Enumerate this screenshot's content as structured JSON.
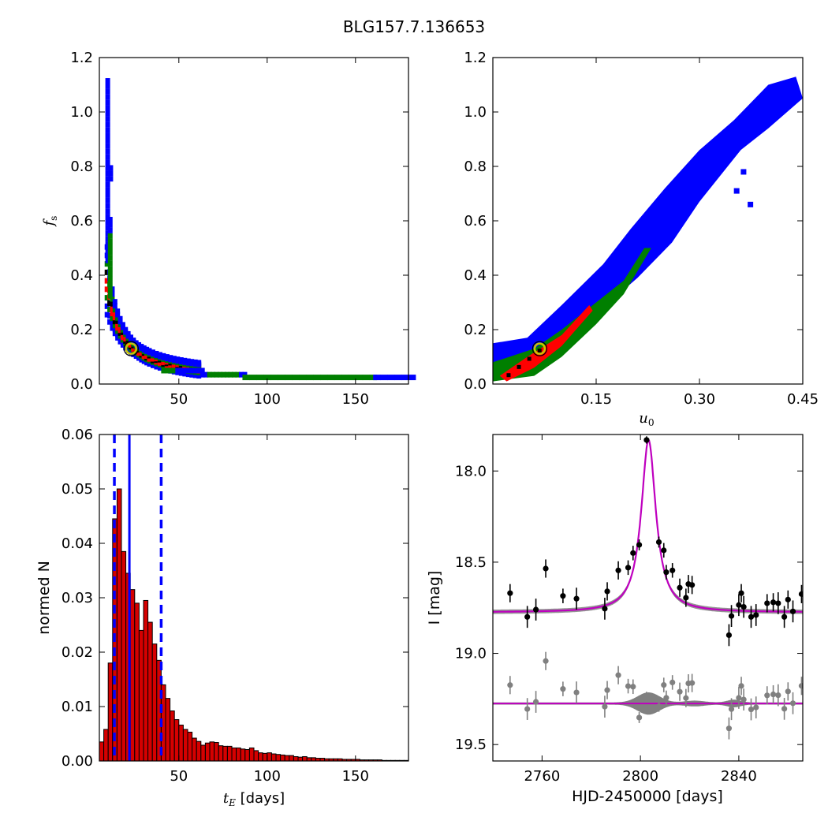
{
  "figure": {
    "title": "BLG157.7.136653"
  },
  "colors": {
    "blue": "#0000ff",
    "green": "#007f00",
    "red": "#ff0000",
    "black": "#000000",
    "bar_fill": "#d50000",
    "model_line": "#bf00bf",
    "model_band": "#808080",
    "marker_edge": "#c8c800",
    "residual_points": "#808080"
  },
  "chart_data": [
    {
      "id": "fs_vs_tE",
      "type": "heatmap",
      "title": "",
      "xlabel": "",
      "ylabel": "f_s",
      "xlim": [
        5,
        180
      ],
      "ylim": [
        0,
        1.2
      ],
      "xticks": [
        50,
        100,
        150
      ],
      "yticks": [
        0.0,
        0.2,
        0.4,
        0.6,
        0.8,
        1.0,
        1.2
      ],
      "ytick_labels": [
        "0.0",
        "0.2",
        "0.4",
        "0.6",
        "0.8",
        "1.0",
        "1.2"
      ],
      "levels": [
        "blue",
        "green",
        "red",
        "black"
      ],
      "best_fit": {
        "tE": 23,
        "fs": 0.13
      }
    },
    {
      "id": "fs_vs_u0",
      "type": "heatmap",
      "title": "",
      "xlabel": "u_0",
      "ylabel": "",
      "xlim": [
        0,
        0.45
      ],
      "ylim": [
        0,
        1.2
      ],
      "xticks": [
        0.15,
        0.3,
        0.45
      ],
      "xtick_labels": [
        "0.15",
        "0.30",
        "0.45"
      ],
      "yticks": [
        0.0,
        0.2,
        0.4,
        0.6,
        0.8,
        1.0,
        1.2
      ],
      "ytick_labels": [
        "0.0",
        "0.2",
        "0.4",
        "0.6",
        "0.8",
        "1.0",
        "1.2"
      ],
      "levels": [
        "blue",
        "green",
        "red",
        "black"
      ],
      "best_fit": {
        "u0": 0.068,
        "fs": 0.13
      }
    },
    {
      "id": "tE_histogram",
      "type": "bar",
      "title": "",
      "xlabel": "t_E  [days]",
      "ylabel": "normed N",
      "xlim": [
        5,
        180
      ],
      "ylim": [
        0,
        0.06
      ],
      "xticks": [
        50,
        100,
        150
      ],
      "yticks": [
        0.0,
        0.01,
        0.02,
        0.03,
        0.04,
        0.05,
        0.06
      ],
      "ytick_labels": [
        "0.00",
        "0.01",
        "0.02",
        "0.03",
        "0.04",
        "0.05",
        "0.06"
      ],
      "bin_start": 5,
      "bin_width": 2.5,
      "values": [
        0.0035,
        0.0058,
        0.018,
        0.0445,
        0.05,
        0.0385,
        0.0345,
        0.0315,
        0.029,
        0.024,
        0.0295,
        0.0255,
        0.0215,
        0.0185,
        0.014,
        0.0115,
        0.0092,
        0.0076,
        0.0066,
        0.0058,
        0.0053,
        0.0042,
        0.0036,
        0.0029,
        0.0033,
        0.0035,
        0.0034,
        0.0028,
        0.0027,
        0.0027,
        0.0024,
        0.0024,
        0.0022,
        0.0021,
        0.0024,
        0.0019,
        0.0015,
        0.0014,
        0.0015,
        0.0013,
        0.0012,
        0.0011,
        0.001,
        0.001,
        0.0008,
        0.0007,
        0.0008,
        0.0006,
        0.0006,
        0.0005,
        0.0005,
        0.0004,
        0.0004,
        0.0004,
        0.0004,
        0.0003,
        0.0003,
        0.0003,
        0.0003,
        0.0002,
        0.0002,
        0.0002,
        0.0002,
        0.0002,
        0.0001,
        0.0001,
        0.0001,
        0.0001,
        0.0001,
        0.0001
      ],
      "median_line": 22,
      "interval_lines": [
        13.5,
        40
      ]
    },
    {
      "id": "lightcurve",
      "type": "scatter",
      "title": "",
      "xlabel": "HJD-2450000 [days]",
      "ylabel": "I [mag]",
      "xlim": [
        2740,
        2866
      ],
      "ylim": [
        19.59,
        17.8
      ],
      "xticks": [
        2760,
        2800,
        2840
      ],
      "yticks": [
        18.0,
        18.5,
        19.0,
        19.5
      ],
      "ytick_labels": [
        "18.0",
        "18.5",
        "19.0",
        "19.5"
      ],
      "model": {
        "t0": 2803.3,
        "base_mag": 18.775,
        "peak_mag": 17.83,
        "width": 3.6
      },
      "residual_offset": 19.275,
      "points": [
        {
          "x": 2747,
          "y": 18.67,
          "e": 0.05
        },
        {
          "x": 2754,
          "y": 18.8,
          "e": 0.06
        },
        {
          "x": 2757.5,
          "y": 18.76,
          "e": 0.06
        },
        {
          "x": 2761.5,
          "y": 18.535,
          "e": 0.05
        },
        {
          "x": 2768.5,
          "y": 18.685,
          "e": 0.04
        },
        {
          "x": 2774,
          "y": 18.7,
          "e": 0.06
        },
        {
          "x": 2785.5,
          "y": 18.755,
          "e": 0.06
        },
        {
          "x": 2786.5,
          "y": 18.66,
          "e": 0.05
        },
        {
          "x": 2791,
          "y": 18.545,
          "e": 0.05
        },
        {
          "x": 2795,
          "y": 18.53,
          "e": 0.04
        },
        {
          "x": 2797,
          "y": 18.45,
          "e": 0.04
        },
        {
          "x": 2799.5,
          "y": 18.405,
          "e": 0.03
        },
        {
          "x": 2802.5,
          "y": 17.83,
          "e": 0.02
        },
        {
          "x": 2807.5,
          "y": 18.39,
          "e": 0.03
        },
        {
          "x": 2809.5,
          "y": 18.435,
          "e": 0.04
        },
        {
          "x": 2810.5,
          "y": 18.555,
          "e": 0.04
        },
        {
          "x": 2813,
          "y": 18.545,
          "e": 0.04
        },
        {
          "x": 2816,
          "y": 18.64,
          "e": 0.05
        },
        {
          "x": 2818.5,
          "y": 18.695,
          "e": 0.05
        },
        {
          "x": 2819.5,
          "y": 18.62,
          "e": 0.05
        },
        {
          "x": 2821,
          "y": 18.625,
          "e": 0.05
        },
        {
          "x": 2836,
          "y": 18.9,
          "e": 0.06
        },
        {
          "x": 2837,
          "y": 18.795,
          "e": 0.06
        },
        {
          "x": 2840,
          "y": 18.735,
          "e": 0.06
        },
        {
          "x": 2841,
          "y": 18.67,
          "e": 0.05
        },
        {
          "x": 2842,
          "y": 18.745,
          "e": 0.06
        },
        {
          "x": 2845,
          "y": 18.8,
          "e": 0.06
        },
        {
          "x": 2847,
          "y": 18.79,
          "e": 0.06
        },
        {
          "x": 2851.5,
          "y": 18.725,
          "e": 0.05
        },
        {
          "x": 2854,
          "y": 18.72,
          "e": 0.05
        },
        {
          "x": 2856,
          "y": 18.725,
          "e": 0.06
        },
        {
          "x": 2858.5,
          "y": 18.8,
          "e": 0.06
        },
        {
          "x": 2860,
          "y": 18.705,
          "e": 0.05
        },
        {
          "x": 2862,
          "y": 18.77,
          "e": 0.06
        },
        {
          "x": 2865.5,
          "y": 18.675,
          "e": 0.05
        }
      ]
    }
  ]
}
